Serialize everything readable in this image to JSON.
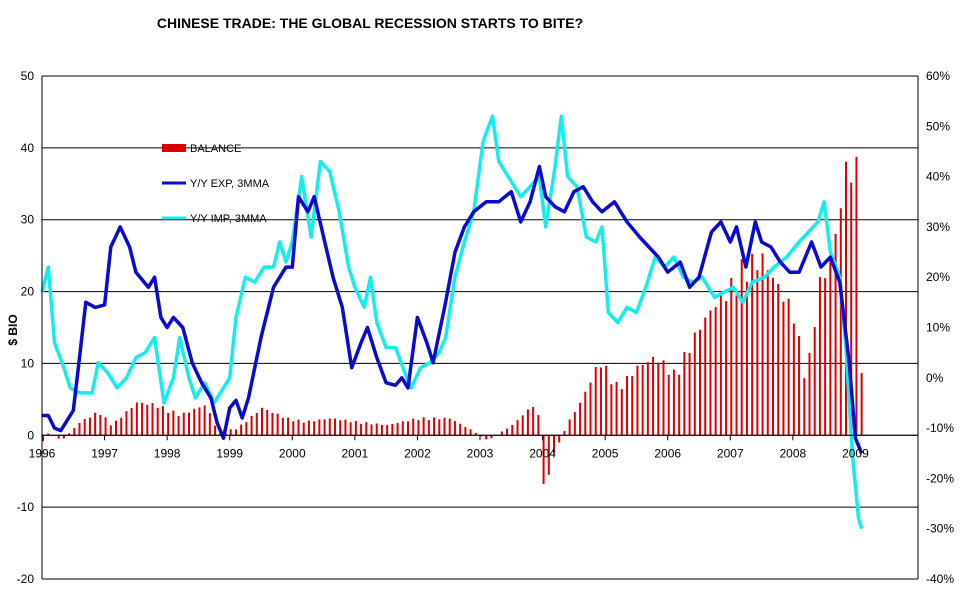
{
  "chart_data": {
    "type": "bar+line",
    "title": "CHINESE TRADE: THE GLOBAL RECESSION STARTS TO BITE?",
    "ylabel": "$ BIO",
    "ylim": [
      -20,
      50
    ],
    "y2lim": [
      -40,
      60
    ],
    "y_ticks": [
      "-20",
      "-10",
      "0",
      "10",
      "20",
      "30",
      "40",
      "50"
    ],
    "y2_ticks": [
      "-40%",
      "-30%",
      "-20%",
      "-10%",
      "0%",
      "10%",
      "20%",
      "30%",
      "40%",
      "50%",
      "60%"
    ],
    "x_ticks": [
      "1996",
      "1997",
      "1998",
      "1999",
      "2000",
      "2001",
      "2002",
      "2003",
      "2004",
      "2005",
      "2006",
      "2007",
      "2008",
      "2009"
    ],
    "x_start": 1996.0,
    "x_end": 2010.0,
    "grid": "horizontal",
    "legend": "top-left",
    "colors": {
      "balance": "#dd0000",
      "exports": "#0a0ad0",
      "imports": "#14eded"
    },
    "series": [
      {
        "name": "BALANCE",
        "type": "bar",
        "axis": "left",
        "anchors": [
          [
            1996.0,
            -1
          ],
          [
            1996.1,
            0.5
          ],
          [
            1996.3,
            -0.8
          ],
          [
            1996.6,
            2
          ],
          [
            1996.9,
            3.5
          ],
          [
            1997.1,
            1.5
          ],
          [
            1997.5,
            4.8
          ],
          [
            1997.8,
            4.5
          ],
          [
            1998.2,
            3
          ],
          [
            1998.6,
            4.5
          ],
          [
            1998.8,
            0.5
          ],
          [
            1999.1,
            1
          ],
          [
            1999.5,
            4
          ],
          [
            1999.9,
            2.5
          ],
          [
            2000.2,
            2
          ],
          [
            2000.6,
            2.5
          ],
          [
            2001.0,
            2
          ],
          [
            2001.5,
            1.5
          ],
          [
            2002.0,
            2.5
          ],
          [
            2002.5,
            2.5
          ],
          [
            2002.9,
            0.5
          ],
          [
            2003.1,
            -0.8
          ],
          [
            2003.5,
            1.5
          ],
          [
            2003.9,
            5
          ],
          [
            2004.0,
            -8
          ],
          [
            2004.2,
            -2
          ],
          [
            2004.4,
            2
          ],
          [
            2004.6,
            5
          ],
          [
            2004.9,
            11
          ],
          [
            2005.2,
            7
          ],
          [
            2005.5,
            10
          ],
          [
            2005.8,
            11.5
          ],
          [
            2006.1,
            9
          ],
          [
            2006.5,
            16
          ],
          [
            2006.8,
            20
          ],
          [
            2007.0,
            22
          ],
          [
            2007.2,
            25
          ],
          [
            2007.5,
            26
          ],
          [
            2007.8,
            21
          ],
          [
            2008.0,
            18
          ],
          [
            2008.2,
            8
          ],
          [
            2008.4,
            22
          ],
          [
            2008.6,
            26
          ],
          [
            2008.75,
            34
          ],
          [
            2008.85,
            40
          ],
          [
            2009.0,
            39
          ],
          [
            2009.1,
            4.5
          ]
        ]
      },
      {
        "name": "Y/Y EXP, 3MMA",
        "type": "line",
        "axis": "right",
        "points": [
          [
            1996.0,
            -7.5
          ],
          [
            1996.1,
            -7.5
          ],
          [
            1996.2,
            -10
          ],
          [
            1996.3,
            -10.5
          ],
          [
            1996.5,
            -6.5
          ],
          [
            1996.6,
            4
          ],
          [
            1996.7,
            15
          ],
          [
            1996.85,
            14
          ],
          [
            1997.0,
            14.5
          ],
          [
            1997.1,
            26
          ],
          [
            1997.25,
            30
          ],
          [
            1997.4,
            26
          ],
          [
            1997.5,
            21
          ],
          [
            1997.7,
            18
          ],
          [
            1997.8,
            20
          ],
          [
            1997.9,
            12
          ],
          [
            1998.0,
            10
          ],
          [
            1998.1,
            12
          ],
          [
            1998.25,
            10
          ],
          [
            1998.4,
            3
          ],
          [
            1998.55,
            -1
          ],
          [
            1998.7,
            -4
          ],
          [
            1998.8,
            -9
          ],
          [
            1998.9,
            -12
          ],
          [
            1999.0,
            -6
          ],
          [
            1999.1,
            -4.5
          ],
          [
            1999.2,
            -8
          ],
          [
            1999.3,
            -4
          ],
          [
            1999.5,
            8
          ],
          [
            1999.7,
            18
          ],
          [
            1999.9,
            22
          ],
          [
            2000.0,
            22
          ],
          [
            2000.1,
            36
          ],
          [
            2000.25,
            33
          ],
          [
            2000.35,
            36
          ],
          [
            2000.5,
            28
          ],
          [
            2000.65,
            20
          ],
          [
            2000.8,
            14
          ],
          [
            2000.95,
            2
          ],
          [
            2001.1,
            7
          ],
          [
            2001.2,
            10
          ],
          [
            2001.35,
            4
          ],
          [
            2001.5,
            -1
          ],
          [
            2001.65,
            -1.5
          ],
          [
            2001.75,
            0
          ],
          [
            2001.85,
            -2
          ],
          [
            2002.0,
            12
          ],
          [
            2002.15,
            7
          ],
          [
            2002.25,
            3
          ],
          [
            2002.45,
            15
          ],
          [
            2002.6,
            25
          ],
          [
            2002.75,
            30
          ],
          [
            2002.9,
            33
          ],
          [
            2003.1,
            35
          ],
          [
            2003.3,
            35
          ],
          [
            2003.5,
            37
          ],
          [
            2003.65,
            31
          ],
          [
            2003.8,
            35
          ],
          [
            2003.95,
            42
          ],
          [
            2004.05,
            36
          ],
          [
            2004.2,
            34
          ],
          [
            2004.35,
            33
          ],
          [
            2004.5,
            37
          ],
          [
            2004.65,
            38
          ],
          [
            2004.8,
            35
          ],
          [
            2004.95,
            33
          ],
          [
            2005.15,
            35
          ],
          [
            2005.35,
            31
          ],
          [
            2005.55,
            28
          ],
          [
            2005.7,
            26
          ],
          [
            2005.85,
            24
          ],
          [
            2006.0,
            21
          ],
          [
            2006.2,
            23
          ],
          [
            2006.35,
            18
          ],
          [
            2006.5,
            20
          ],
          [
            2006.7,
            29
          ],
          [
            2006.85,
            31
          ],
          [
            2007.0,
            27
          ],
          [
            2007.1,
            30
          ],
          [
            2007.25,
            22
          ],
          [
            2007.4,
            31
          ],
          [
            2007.5,
            27
          ],
          [
            2007.65,
            26
          ],
          [
            2007.8,
            23
          ],
          [
            2007.95,
            21
          ],
          [
            2008.1,
            21
          ],
          [
            2008.3,
            27
          ],
          [
            2008.45,
            22
          ],
          [
            2008.6,
            24
          ],
          [
            2008.75,
            19
          ],
          [
            2008.9,
            3
          ],
          [
            2009.0,
            -12
          ],
          [
            2009.1,
            -15
          ]
        ]
      },
      {
        "name": "Y/Y IMP, 3MMA",
        "type": "line",
        "axis": "right",
        "points": [
          [
            1996.0,
            17
          ],
          [
            1996.1,
            22
          ],
          [
            1996.2,
            7
          ],
          [
            1996.35,
            2
          ],
          [
            1996.45,
            -2
          ],
          [
            1996.6,
            -3
          ],
          [
            1996.8,
            -3
          ],
          [
            1996.9,
            3
          ],
          [
            1997.05,
            1
          ],
          [
            1997.2,
            -2
          ],
          [
            1997.35,
            0
          ],
          [
            1997.5,
            4
          ],
          [
            1997.65,
            5
          ],
          [
            1997.8,
            8
          ],
          [
            1997.95,
            -5
          ],
          [
            1998.1,
            0
          ],
          [
            1998.2,
            8
          ],
          [
            1998.35,
            0
          ],
          [
            1998.45,
            -4
          ],
          [
            1998.6,
            -1
          ],
          [
            1998.75,
            -5
          ],
          [
            1998.9,
            -2
          ],
          [
            1999.0,
            0
          ],
          [
            1999.1,
            12
          ],
          [
            1999.25,
            20
          ],
          [
            1999.4,
            19
          ],
          [
            1999.55,
            22
          ],
          [
            1999.7,
            22
          ],
          [
            1999.8,
            27
          ],
          [
            1999.9,
            23
          ],
          [
            2000.0,
            27
          ],
          [
            2000.15,
            40
          ],
          [
            2000.3,
            28
          ],
          [
            2000.45,
            43
          ],
          [
            2000.6,
            41
          ],
          [
            2000.75,
            33
          ],
          [
            2000.9,
            22
          ],
          [
            2001.0,
            18
          ],
          [
            2001.15,
            14
          ],
          [
            2001.25,
            20
          ],
          [
            2001.35,
            11
          ],
          [
            2001.5,
            6
          ],
          [
            2001.65,
            6
          ],
          [
            2001.8,
            1
          ],
          [
            2001.9,
            -2
          ],
          [
            2002.05,
            2
          ],
          [
            2002.2,
            3
          ],
          [
            2002.35,
            5
          ],
          [
            2002.45,
            8
          ],
          [
            2002.6,
            20
          ],
          [
            2002.75,
            27
          ],
          [
            2002.9,
            33
          ],
          [
            2003.05,
            47
          ],
          [
            2003.2,
            52
          ],
          [
            2003.3,
            43
          ],
          [
            2003.5,
            39
          ],
          [
            2003.65,
            36
          ],
          [
            2003.8,
            38
          ],
          [
            2003.95,
            40
          ],
          [
            2004.05,
            30
          ],
          [
            2004.2,
            42
          ],
          [
            2004.3,
            52
          ],
          [
            2004.4,
            40
          ],
          [
            2004.55,
            38
          ],
          [
            2004.7,
            28
          ],
          [
            2004.85,
            27
          ],
          [
            2004.95,
            30
          ],
          [
            2005.05,
            13
          ],
          [
            2005.2,
            11
          ],
          [
            2005.35,
            14
          ],
          [
            2005.5,
            13
          ],
          [
            2005.65,
            18
          ],
          [
            2005.8,
            24
          ],
          [
            2005.95,
            22
          ],
          [
            2006.1,
            24
          ],
          [
            2006.25,
            20
          ],
          [
            2006.4,
            19
          ],
          [
            2006.55,
            20
          ],
          [
            2006.75,
            16
          ],
          [
            2006.9,
            17
          ],
          [
            2007.05,
            18
          ],
          [
            2007.2,
            15
          ],
          [
            2007.35,
            19
          ],
          [
            2007.55,
            20
          ],
          [
            2007.7,
            22
          ],
          [
            2007.9,
            24
          ],
          [
            2008.1,
            27
          ],
          [
            2008.25,
            29
          ],
          [
            2008.4,
            31
          ],
          [
            2008.5,
            35
          ],
          [
            2008.6,
            25
          ],
          [
            2008.75,
            20
          ],
          [
            2008.85,
            6
          ],
          [
            2008.95,
            -15
          ],
          [
            2009.05,
            -28
          ],
          [
            2009.1,
            -30
          ]
        ]
      }
    ]
  }
}
